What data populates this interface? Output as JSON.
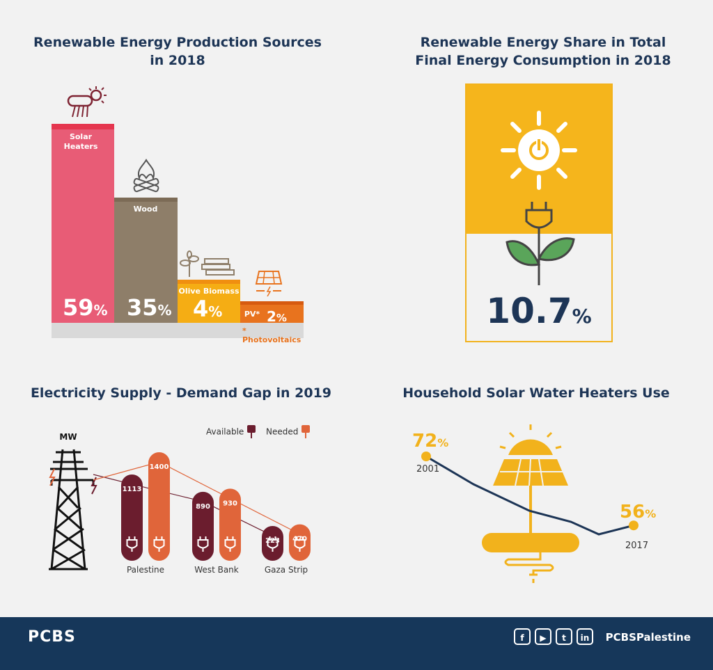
{
  "panels": {
    "production": {
      "title_line1": "Renewable Energy Production Sources",
      "title_line2": "in 2018"
    },
    "share": {
      "title_line1": "Renewable Energy Share in Total",
      "title_line2": "Final Energy Consumption in 2018"
    },
    "gap": {
      "title": "Electricity Supply - Demand Gap in 2019"
    },
    "heaters": {
      "title": "Household Solar Water Heaters Use"
    }
  },
  "colors": {
    "solar": "#e85c76",
    "wood": "#8e7e69",
    "olive": "#f5ad14",
    "pv": "#e8731e",
    "available": "#6b1d2e",
    "needed": "#e0653a",
    "navy": "#1d3556",
    "gold": "#f2b21c"
  },
  "production_labels": {
    "solar": "Solar\nHeaters",
    "wood": "Wood",
    "olive": "Olive Biomass",
    "pv": "PV*",
    "footnote": "* Photovoltaics"
  },
  "share_value": {
    "number": "10.7",
    "unit": "%"
  },
  "gap_legend": {
    "available": "Available",
    "needed": "Needed",
    "unit": "MW"
  },
  "heaters_labels": {
    "start_value": "72",
    "end_value": "56",
    "start_year": "2001",
    "end_year": "2017",
    "unit": "%"
  },
  "footer": {
    "logo": "PCBS",
    "handle": "PCBSPalestine",
    "social": [
      "f",
      "▶",
      "t",
      "in"
    ]
  },
  "chart_data": [
    {
      "type": "bar",
      "title": "Renewable Energy Production Sources in 2018",
      "categories": [
        "Solar Heaters",
        "Wood",
        "Olive Biomass",
        "PV*"
      ],
      "values": [
        59,
        35,
        4,
        2
      ],
      "unit": "%",
      "ylim": [
        0,
        60
      ]
    },
    {
      "type": "table",
      "title": "Renewable Energy Share in Total Final Energy Consumption in 2018",
      "values": [
        10.7
      ],
      "unit": "%"
    },
    {
      "type": "bar",
      "title": "Electricity Supply - Demand Gap in 2019",
      "categories": [
        "Palestine",
        "West Bank",
        "Gaza Strip"
      ],
      "series": [
        {
          "name": "Available",
          "values": [
            1113,
            890,
            223
          ]
        },
        {
          "name": "Needed",
          "values": [
            1400,
            930,
            470
          ]
        }
      ],
      "ylabel": "MW",
      "ylim": [
        0,
        1400
      ]
    },
    {
      "type": "line",
      "title": "Household Solar Water Heaters Use",
      "x": [
        "2001",
        "2017"
      ],
      "values": [
        72,
        56
      ],
      "unit": "%"
    }
  ]
}
